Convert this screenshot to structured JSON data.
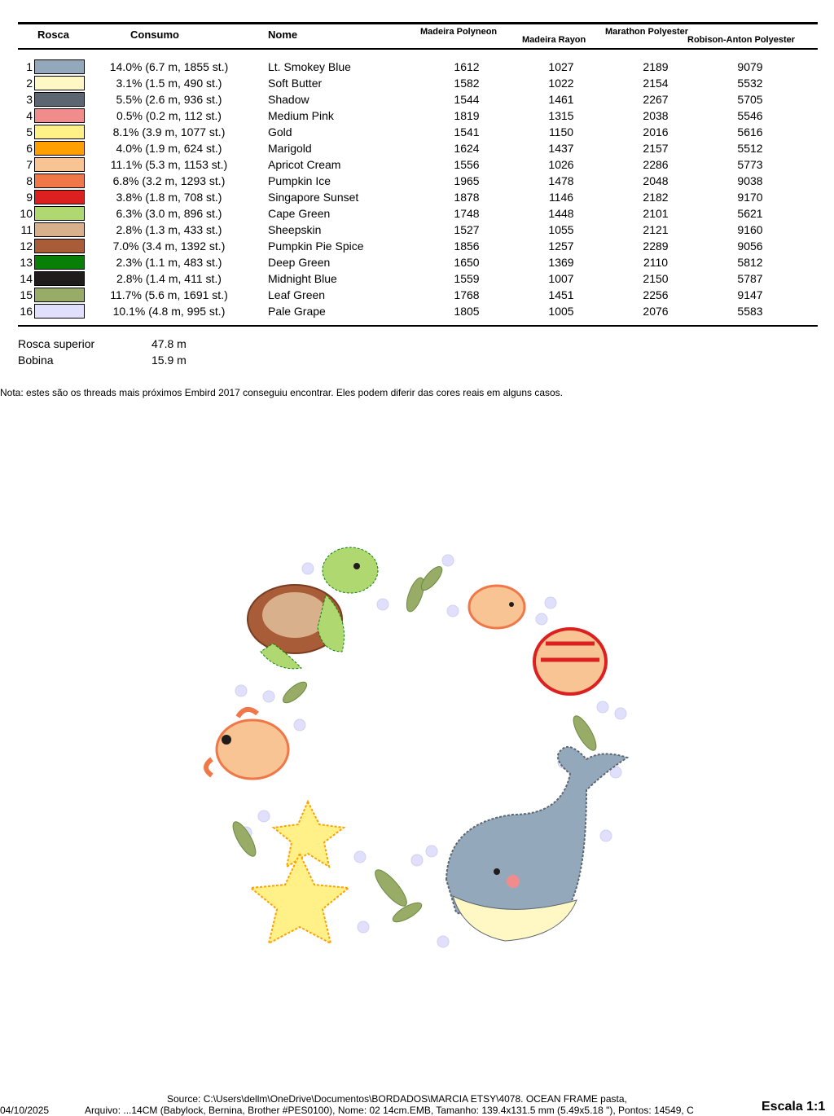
{
  "table": {
    "headers": {
      "rosca": "Rosca",
      "consumo": "Consumo",
      "nome": "Nome",
      "madeira_polyneon": "Madeira Polyneon",
      "madeira_rayon": "Madeira Rayon",
      "marathon": "Marathon Polyester",
      "robison": "Robison-Anton Polyester"
    },
    "rows": [
      {
        "n": "1",
        "color": "#94a8bc",
        "consumo": "14.0% (6.7 m, 1855 st.)",
        "nome": "Lt. Smokey Blue",
        "mp": "1612",
        "mr": "1027",
        "mar": "2189",
        "ra": "9079"
      },
      {
        "n": "2",
        "color": "#fff8c4",
        "consumo": "3.1% (1.5 m, 490 st.)",
        "nome": "Soft Butter",
        "mp": "1582",
        "mr": "1022",
        "mar": "2154",
        "ra": "5532"
      },
      {
        "n": "3",
        "color": "#5c6670",
        "consumo": "5.5% (2.6 m, 936 st.)",
        "nome": "Shadow",
        "mp": "1544",
        "mr": "1461",
        "mar": "2267",
        "ra": "5705"
      },
      {
        "n": "4",
        "color": "#f08c8c",
        "consumo": "0.5% (0.2 m, 112 st.)",
        "nome": "Medium Pink",
        "mp": "1819",
        "mr": "1315",
        "mar": "2038",
        "ra": "5546"
      },
      {
        "n": "5",
        "color": "#fff088",
        "consumo": "8.1% (3.9 m, 1077 st.)",
        "nome": "Gold",
        "mp": "1541",
        "mr": "1150",
        "mar": "2016",
        "ra": "5616"
      },
      {
        "n": "6",
        "color": "#ffa000",
        "consumo": "4.0% (1.9 m, 624 st.)",
        "nome": "Marigold",
        "mp": "1624",
        "mr": "1437",
        "mar": "2157",
        "ra": "5512"
      },
      {
        "n": "7",
        "color": "#f8c494",
        "consumo": "11.1% (5.3 m, 1153 st.)",
        "nome": "Apricot Cream",
        "mp": "1556",
        "mr": "1026",
        "mar": "2286",
        "ra": "5773"
      },
      {
        "n": "8",
        "color": "#f07848",
        "consumo": "6.8% (3.2 m, 1293 st.)",
        "nome": "Pumpkin Ice",
        "mp": "1965",
        "mr": "1478",
        "mar": "2048",
        "ra": "9038"
      },
      {
        "n": "9",
        "color": "#dc2020",
        "consumo": "3.8% (1.8 m, 708 st.)",
        "nome": "Singapore Sunset",
        "mp": "1878",
        "mr": "1146",
        "mar": "2182",
        "ra": "9170"
      },
      {
        "n": "10",
        "color": "#b0d870",
        "consumo": "6.3% (3.0 m, 896 st.)",
        "nome": "Cape Green",
        "mp": "1748",
        "mr": "1448",
        "mar": "2101",
        "ra": "5621"
      },
      {
        "n": "11",
        "color": "#d8b08c",
        "consumo": "2.8% (1.3 m, 433 st.)",
        "nome": "Sheepskin",
        "mp": "1527",
        "mr": "1055",
        "mar": "2121",
        "ra": "9160"
      },
      {
        "n": "12",
        "color": "#a85c38",
        "consumo": "7.0% (3.4 m, 1392 st.)",
        "nome": "Pumpkin Pie Spice",
        "mp": "1856",
        "mr": "1257",
        "mar": "2289",
        "ra": "9056"
      },
      {
        "n": "13",
        "color": "#088008",
        "consumo": "2.3% (1.1 m, 483 st.)",
        "nome": "Deep Green",
        "mp": "1650",
        "mr": "1369",
        "mar": "2110",
        "ra": "5812"
      },
      {
        "n": "14",
        "color": "#201c1c",
        "consumo": "2.8% (1.4 m, 411 st.)",
        "nome": "Midnight Blue",
        "mp": "1559",
        "mr": "1007",
        "mar": "2150",
        "ra": "5787"
      },
      {
        "n": "15",
        "color": "#98ac68",
        "consumo": "11.7% (5.6 m, 1691 st.)",
        "nome": "Leaf Green",
        "mp": "1768",
        "mr": "1451",
        "mar": "2256",
        "ra": "9147"
      },
      {
        "n": "16",
        "color": "#e0e0fc",
        "consumo": "10.1% (4.8 m, 995 st.)",
        "nome": "Pale Grape",
        "mp": "1805",
        "mr": "1005",
        "mar": "2076",
        "ra": "5583"
      }
    ]
  },
  "totals": {
    "rosca_superior_label": "Rosca superior",
    "rosca_superior_value": "47.8 m",
    "bobina_label": "Bobina",
    "bobina_value": "15.9 m"
  },
  "note": "Nota: estes são os threads mais próximos Embird 2017 conseguiu encontrar. Eles podem diferir das cores reais em alguns casos.",
  "footer": {
    "date": "04/10/2025",
    "source": "Source: C:\\Users\\dellm\\OneDrive\\Documentos\\BORDADOS\\MARCIA ETSY\\4078. OCEAN FRAME pasta,",
    "arquivo": "Arquivo: ...14CM (Babylock, Bernina, Brother #PES0100), Nome: 02 14cm.EMB, Tamanho: 139.4x131.5 mm (5.49x5.18 \"), Pontos: 14549, C",
    "scale": "Escala 1:1"
  }
}
